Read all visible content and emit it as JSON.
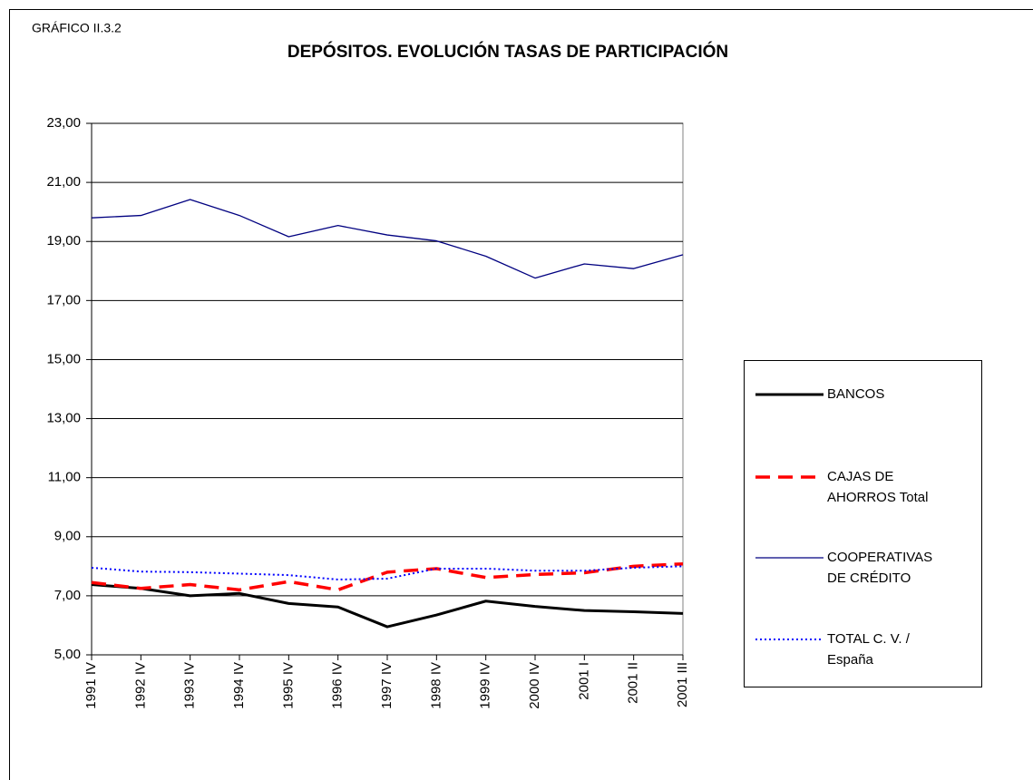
{
  "chart_data": {
    "type": "line",
    "label": "GRÁFICO II.3.2",
    "title": "DEPÓSITOS. EVOLUCIÓN TASAS DE PARTICIPACIÓN",
    "categories": [
      "1991 IV",
      "1992 IV",
      "1993 IV",
      "1994 IV",
      "1995 IV",
      "1996 IV",
      "1997 IV",
      "1998 IV",
      "1999 IV",
      "2000 IV",
      "2001 I",
      "2001 II",
      "2001 III"
    ],
    "series": [
      {
        "name": "BANCOS",
        "color": "#000000",
        "values": [
          7.38,
          7.25,
          7.0,
          7.08,
          6.74,
          6.62,
          5.95,
          6.35,
          6.82,
          6.64,
          6.5,
          6.46,
          6.4
        ]
      },
      {
        "name": "CAJAS DE AHORROS Total",
        "color": "#ff0000",
        "values": [
          7.45,
          7.25,
          7.38,
          7.2,
          7.48,
          7.2,
          7.8,
          7.92,
          7.62,
          7.72,
          7.78,
          8.0,
          8.08
        ]
      },
      {
        "name": "COOPERATIVAS DE CRÉDITO",
        "color": "#000080",
        "values": [
          19.8,
          19.88,
          20.42,
          19.88,
          19.16,
          19.54,
          19.22,
          19.02,
          18.5,
          17.76,
          18.24,
          18.08,
          18.55
        ]
      },
      {
        "name": "TOTAL  C. V. / España",
        "color": "#0000ff",
        "values": [
          7.95,
          7.82,
          7.8,
          7.75,
          7.7,
          7.55,
          7.58,
          7.92,
          7.92,
          7.85,
          7.85,
          7.95,
          8.0
        ]
      }
    ],
    "ylim": [
      5,
      23
    ],
    "yticks": [
      {
        "value": 5,
        "label": "5,00"
      },
      {
        "value": 7,
        "label": "7,00"
      },
      {
        "value": 9,
        "label": "9,00"
      },
      {
        "value": 11,
        "label": "11,00"
      },
      {
        "value": 13,
        "label": "13,00"
      },
      {
        "value": 15,
        "label": "15,00"
      },
      {
        "value": 17,
        "label": "17,00"
      },
      {
        "value": 19,
        "label": "19,00"
      },
      {
        "value": 21,
        "label": "21,00"
      },
      {
        "value": 23,
        "label": "23,00"
      }
    ],
    "grid": true,
    "legend": "right"
  }
}
